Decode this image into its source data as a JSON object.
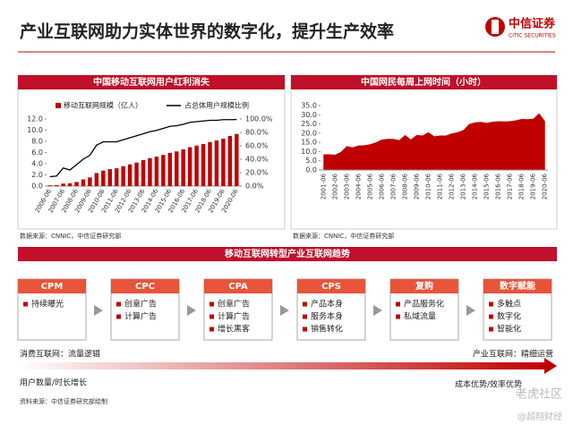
{
  "header": {
    "title": "产业互联网助力实体世界的数字化，提升生产效率",
    "logo_cn": "中信证券",
    "logo_en": "CITIC SECURITIES"
  },
  "chart_data": [
    {
      "type": "bar",
      "title": "中国移动互联网用户红利消失",
      "categories": [
        "2006-06",
        null,
        "2007-06",
        null,
        "2008-06",
        null,
        "2009-06",
        null,
        "2010-06",
        null,
        "2011-06",
        null,
        "2012-06",
        null,
        "2013-06",
        null,
        "2014-06",
        null,
        "2015-06",
        null,
        "2016-06",
        null,
        "2017-06",
        null,
        "2018-06",
        null,
        "2019-06",
        null,
        "2020-06"
      ],
      "series": [
        {
          "name": "移动互联网规模（亿人）",
          "color": "#c00000",
          "values": [
            0.13,
            0.17,
            0.44,
            0.5,
            0.73,
            1.18,
            1.55,
            2.33,
            2.77,
            3.03,
            3.18,
            3.56,
            3.88,
            4.2,
            4.64,
            5.0,
            5.27,
            5.57,
            5.94,
            6.2,
            6.56,
            6.95,
            7.24,
            7.53,
            7.88,
            8.17,
            8.47,
            8.97,
            9.32
          ]
        },
        {
          "name": "占总体用户规模比例",
          "color": "#000000",
          "type": "line",
          "axis": "y2",
          "values": [
            14,
            15,
            27,
            24,
            32,
            40,
            46,
            61,
            66,
            66,
            66,
            69,
            72,
            75,
            78,
            81,
            83,
            86,
            89,
            90,
            92,
            95,
            96,
            97,
            98,
            98,
            99,
            99,
            99.2
          ]
        }
      ],
      "ylim": [
        0,
        12
      ],
      "yticks": [
        {
          "value": 0,
          "label": "0.0"
        },
        {
          "value": 2,
          "label": "2.0"
        },
        {
          "value": 4,
          "label": "4.0"
        },
        {
          "value": 6,
          "label": "6.0"
        },
        {
          "value": 8,
          "label": "8.0"
        },
        {
          "value": 10,
          "label": "10.0"
        },
        {
          "value": 12,
          "label": "12.0"
        }
      ],
      "y2lim": [
        0,
        100
      ],
      "y2ticks": [
        {
          "value": 0,
          "label": "0.0%"
        },
        {
          "value": 20,
          "label": "20.0%"
        },
        {
          "value": 40,
          "label": "40.0%"
        },
        {
          "value": 60,
          "label": "60.0%"
        },
        {
          "value": 80,
          "label": "80.0%"
        },
        {
          "value": 100,
          "label": "100.0%"
        }
      ],
      "legend": "top",
      "source": "数据来源：CNNIC，中信证券研究部"
    },
    {
      "type": "area",
      "title": "中国网民每周上网时间（小时）",
      "categories": [
        "2001-06",
        null,
        "2002-06",
        null,
        "2003-06",
        null,
        "2004-06",
        null,
        "2005-06",
        null,
        "2006-06",
        null,
        "2007-06",
        null,
        "2008-06",
        null,
        "2009-06",
        null,
        "2010-06",
        null,
        "2011-06",
        null,
        "2012-06",
        null,
        "2013-06",
        null,
        "2014-06",
        null,
        "2015-06",
        null,
        "2016-06",
        null,
        "2017-06",
        null,
        "2018-06",
        null,
        "2019-06",
        null,
        "2020-06"
      ],
      "values": [
        8.5,
        8.5,
        8.3,
        9.8,
        13.0,
        12.3,
        13.3,
        13.4,
        14.0,
        15.0,
        16.5,
        16.9,
        16.9,
        16.2,
        19.0,
        16.6,
        19.0,
        18.7,
        20.5,
        18.3,
        18.7,
        18.7,
        19.9,
        20.5,
        21.7,
        25.0,
        25.9,
        26.1,
        25.6,
        26.2,
        26.5,
        26.4,
        26.5,
        27.0,
        27.7,
        27.6,
        27.9,
        30.8,
        26.5
      ],
      "color": "#c00000",
      "ylim": [
        0,
        35
      ],
      "yticks": [
        {
          "value": 0,
          "label": "0.0"
        },
        {
          "value": 5,
          "label": "5.0"
        },
        {
          "value": 10,
          "label": "10.0"
        },
        {
          "value": 15,
          "label": "15.0"
        },
        {
          "value": 20,
          "label": "20.0"
        },
        {
          "value": 25,
          "label": "25.0"
        },
        {
          "value": 30,
          "label": "30.0"
        },
        {
          "value": 35,
          "label": "35.0"
        }
      ],
      "source": "数据来源：CNNIC，中信证券研究部"
    }
  ],
  "flow": {
    "title": "移动互联网转型产业互联网趋势",
    "steps": [
      {
        "name": "CPM",
        "items": [
          "持续曝光"
        ]
      },
      {
        "name": "CPC",
        "items": [
          "创意广告",
          "计算广告"
        ]
      },
      {
        "name": "CPA",
        "items": [
          "创意广告",
          "计算广告",
          "增长黑客"
        ]
      },
      {
        "name": "CPS",
        "items": [
          "产品本身",
          "服务本身",
          "销售转化"
        ]
      },
      {
        "name": "复购",
        "items": [
          "产品服务化",
          "私域流量"
        ]
      },
      {
        "name": "数字赋能",
        "items": [
          "多触点",
          "数字化",
          "智能化"
        ]
      }
    ]
  },
  "trend": {
    "left_top": "消费互联网：流量逻辑",
    "right_top": "产业互联网：精细运营",
    "left_bottom": "用户数量/时长增长",
    "right_bottom": "成本优势/效率优势"
  },
  "footer_source": "资料来源：中信证券研究部绘制",
  "watermark": [
    "老虎社区",
    "@超翔财经"
  ]
}
